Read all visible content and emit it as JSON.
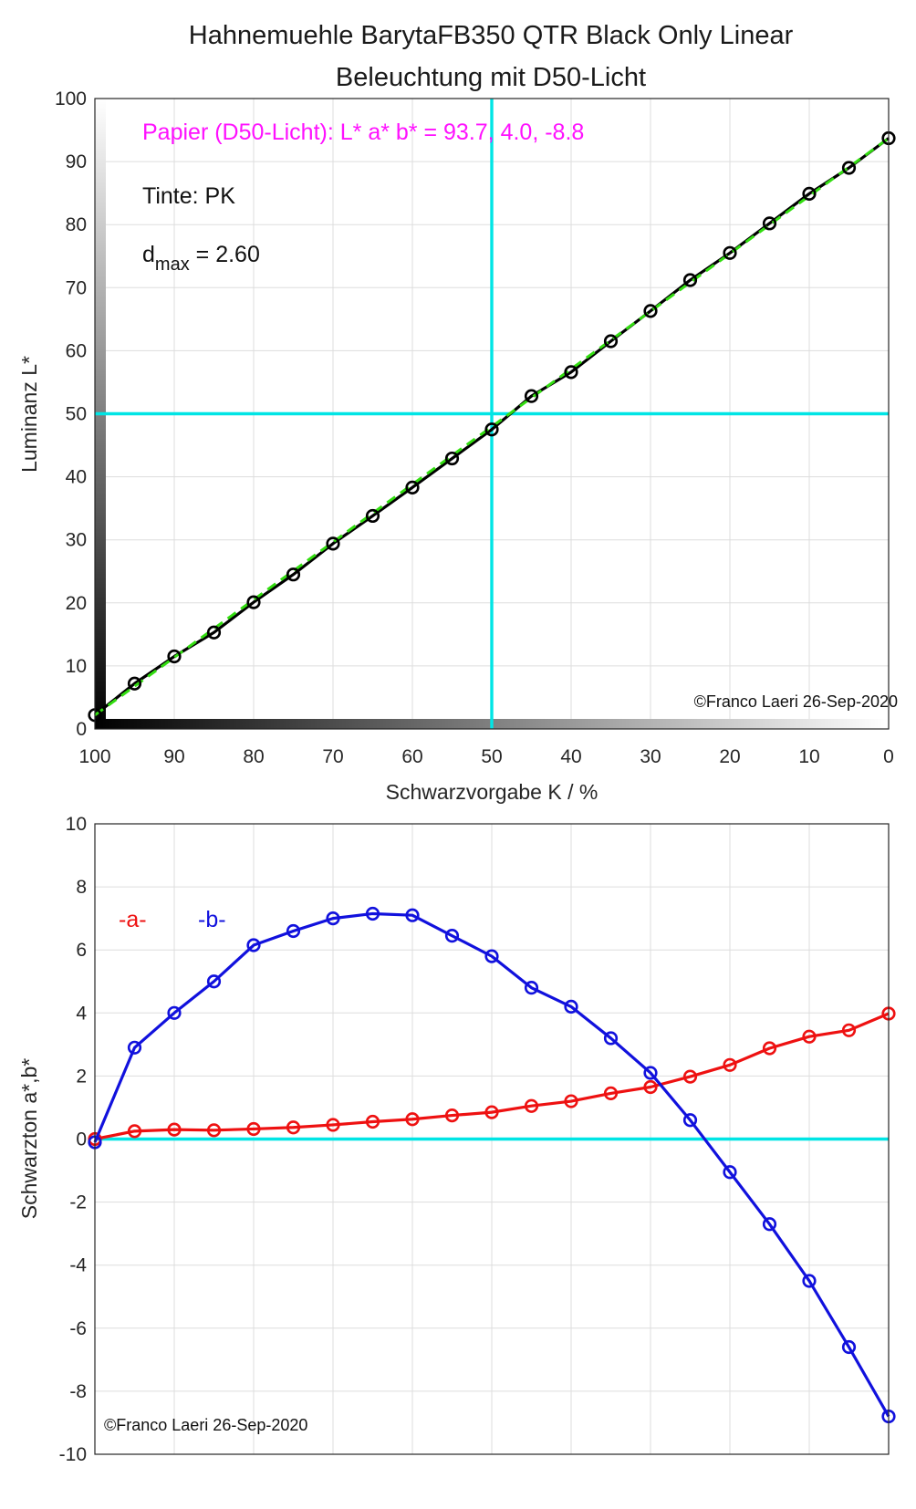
{
  "chart_data": [
    {
      "type": "line",
      "title": "Hahnemuehle BarytaFB350 QTR Black Only Linear",
      "subtitle": "Beleuchtung mit D50-Licht",
      "xlabel": "Schwarzvorgabe  K / %",
      "ylabel": "Luminanz  L*",
      "xlim": [
        100,
        0
      ],
      "ylim": [
        0,
        100
      ],
      "x_reversed": true,
      "grid": true,
      "x_ticks": [
        "100",
        "90",
        "80",
        "70",
        "60",
        "50",
        "40",
        "30",
        "20",
        "10",
        "0"
      ],
      "y_ticks": [
        "0",
        "10",
        "20",
        "30",
        "40",
        "50",
        "60",
        "70",
        "80",
        "90",
        "100"
      ],
      "paper_text": "Papier (D50-Licht): L* a* b* = 93.7, 4.0, -8.8",
      "ink_text": "Tinte:  PK",
      "dmax_prefix": "d",
      "dmax_sub": "max",
      "dmax_value": " = 2.60",
      "copyright": "©Franco Laeri  26-Sep-2020",
      "reference_lines": {
        "x": 50,
        "y": 50,
        "color": "#00e5e5"
      },
      "linear_reference": {
        "from": [
          100,
          2.2
        ],
        "to": [
          0,
          93.7
        ],
        "color": "#33dd11"
      },
      "x": [
        100,
        95,
        90,
        85,
        80,
        75,
        70,
        65,
        60,
        55,
        50,
        45,
        40,
        35,
        30,
        25,
        20,
        15,
        10,
        5,
        0
      ],
      "series": [
        {
          "values": [
            2.2,
            7.2,
            11.5,
            15.3,
            20.1,
            24.5,
            29.4,
            33.8,
            38.3,
            42.9,
            47.5,
            52.8,
            56.6,
            61.5,
            66.3,
            71.2,
            75.5,
            80.2,
            84.9,
            89.0,
            93.7
          ],
          "color": "#000000"
        }
      ]
    },
    {
      "type": "line",
      "ylabel": "Schwarzton a*,b*",
      "xlim": [
        100,
        0
      ],
      "ylim": [
        -10,
        10
      ],
      "x_reversed": true,
      "grid": true,
      "y_ticks": [
        "-10",
        "-8",
        "-6",
        "-4",
        "-2",
        "0",
        "2",
        "4",
        "6",
        "8",
        "10"
      ],
      "copyright": "©Franco Laeri  26-Sep-2020",
      "reference_lines": {
        "y": 0,
        "color": "#00e5e5"
      },
      "x": [
        100,
        95,
        90,
        85,
        80,
        75,
        70,
        65,
        60,
        55,
        50,
        45,
        40,
        35,
        30,
        25,
        20,
        15,
        10,
        5,
        0
      ],
      "series": [
        {
          "name": "-a-",
          "color": "#ee1111",
          "values": [
            0.0,
            0.25,
            0.3,
            0.28,
            0.32,
            0.37,
            0.45,
            0.55,
            0.63,
            0.75,
            0.85,
            1.05,
            1.2,
            1.45,
            1.65,
            1.98,
            2.35,
            2.88,
            3.25,
            3.45,
            3.98
          ]
        },
        {
          "name": "-b-",
          "color": "#1111dd",
          "values": [
            -0.1,
            2.9,
            4.0,
            5.0,
            6.15,
            6.6,
            7.0,
            7.15,
            7.1,
            6.45,
            5.8,
            4.8,
            4.2,
            3.2,
            2.1,
            0.6,
            -1.05,
            -2.7,
            -4.5,
            -6.6,
            -8.8
          ]
        }
      ]
    }
  ]
}
